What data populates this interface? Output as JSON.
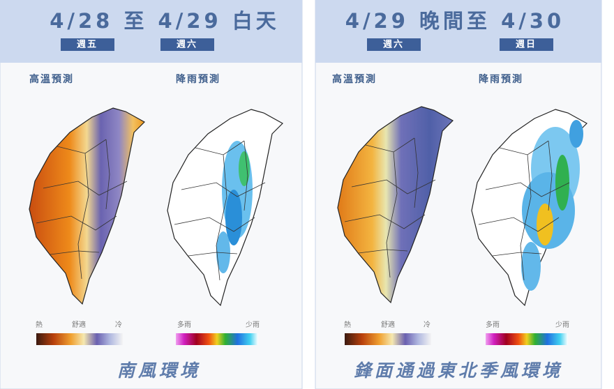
{
  "panels": [
    {
      "title": "4/28 至 4/29 白天",
      "days": [
        "週五",
        "週六"
      ],
      "maps": [
        {
          "label": "高溫預測",
          "legend": [
            "熱",
            "舒適",
            "冷"
          ]
        },
        {
          "label": "降雨預測",
          "legend": [
            "多雨",
            "少雨"
          ]
        }
      ],
      "footer": "南風環境"
    },
    {
      "title": "4/29 晚間至 4/30",
      "days": [
        "週六",
        "週日"
      ],
      "maps": [
        {
          "label": "高溫預測",
          "legend": [
            "熱",
            "舒適",
            "冷"
          ]
        },
        {
          "label": "降雨預測",
          "legend": [
            "多雨",
            "少雨"
          ]
        }
      ],
      "footer": "鋒面通過東北季風環境"
    }
  ]
}
